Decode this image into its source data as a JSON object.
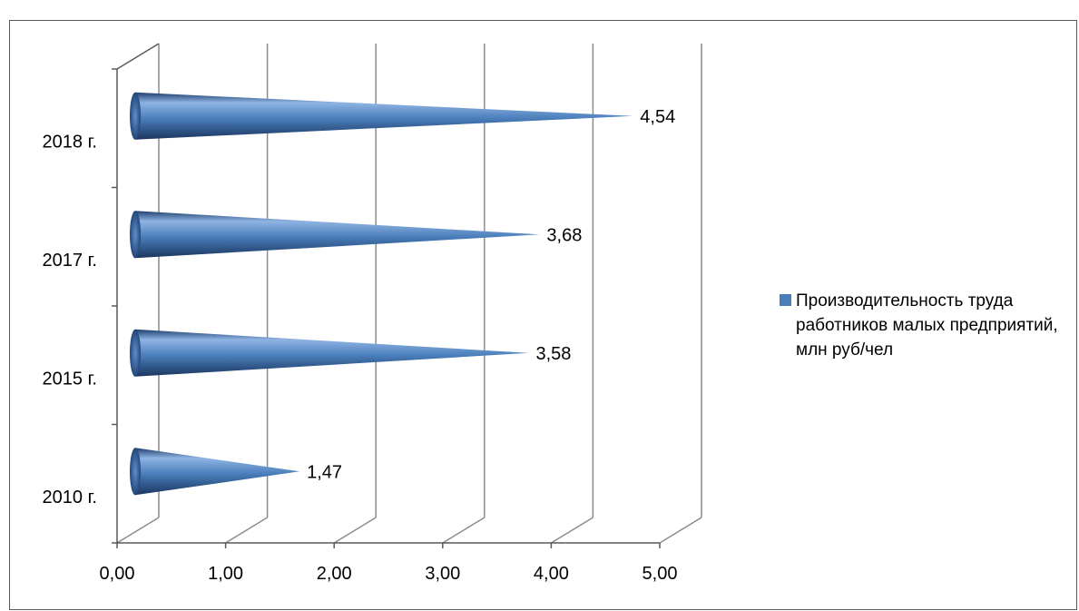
{
  "chart_data": {
    "type": "bar",
    "orientation": "horizontal",
    "shape": "3d-cone",
    "categories": [
      "2010 г.",
      "2015 г.",
      "2017 г.",
      "2018 г."
    ],
    "series": [
      {
        "name": "Производительность труда работников малых предприятий, млн руб/чел",
        "values": [
          1.47,
          3.58,
          3.68,
          4.54
        ],
        "value_labels": [
          "1,47",
          "3,58",
          "3,68",
          "4,54"
        ],
        "color": "#4a7ebb"
      }
    ],
    "xlim": [
      0,
      5
    ],
    "x_ticks": [
      0,
      1,
      2,
      3,
      4,
      5
    ],
    "x_tick_labels": [
      "0,00",
      "1,00",
      "2,00",
      "3,00",
      "4,00",
      "5,00"
    ],
    "grid": true,
    "legend_position": "right",
    "colors": {
      "bar": "#4a7ebb",
      "bar_dark": "#1f3f6e",
      "bar_light": "#8fb4e3",
      "grid": "#8c8c8c",
      "axis": "#595959"
    }
  }
}
